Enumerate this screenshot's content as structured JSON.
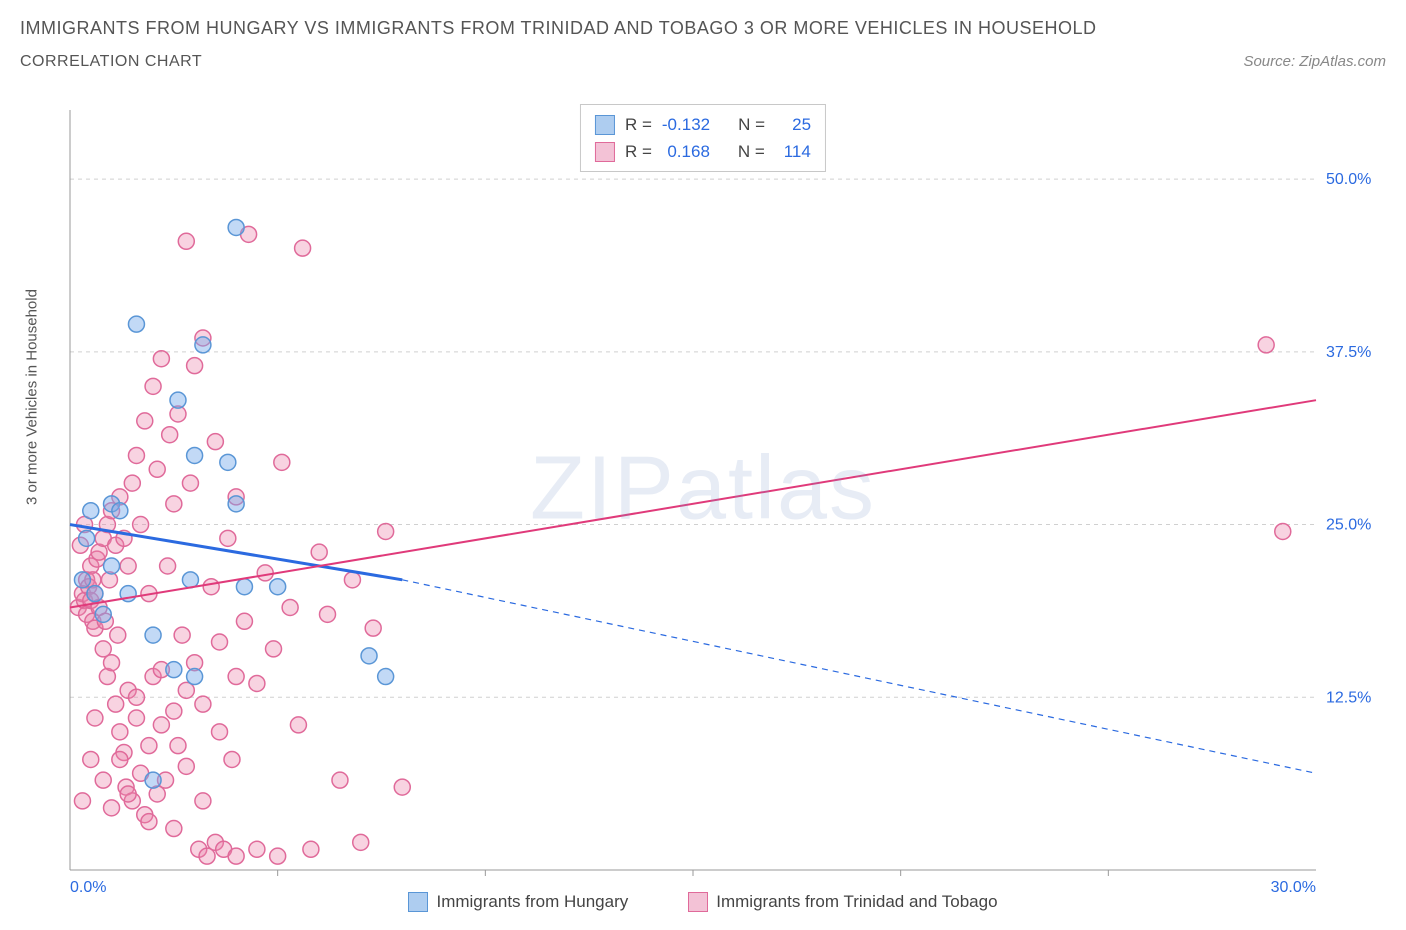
{
  "title": "IMMIGRANTS FROM HUNGARY VS IMMIGRANTS FROM TRINIDAD AND TOBAGO 3 OR MORE VEHICLES IN HOUSEHOLD",
  "subtitle": "CORRELATION CHART",
  "source": "Source: ZipAtlas.com",
  "watermark_bold": "ZIP",
  "watermark_light": "atlas",
  "chart": {
    "type": "scatter",
    "background_color": "#ffffff",
    "grid_color": "#d0d0d0",
    "axis_color": "#999999",
    "tick_label_color": "#2b6ae0",
    "xlim": [
      0,
      30
    ],
    "ylim": [
      0,
      55
    ],
    "x_axis": {
      "ticks": [
        0,
        30
      ],
      "tick_labels": [
        "0.0%",
        "30.0%"
      ],
      "minor_ticks": [
        5,
        10,
        15,
        20,
        25
      ]
    },
    "y_axis": {
      "label": "3 or more Vehicles in Household",
      "ticks": [
        12.5,
        25.0,
        37.5,
        50.0
      ],
      "tick_labels": [
        "12.5%",
        "25.0%",
        "37.5%",
        "50.0%"
      ]
    },
    "series": [
      {
        "id": "hungary",
        "label": "Immigrants from Hungary",
        "color_fill": "rgba(120,170,235,0.45)",
        "color_stroke": "#5a96d6",
        "legend_fill": "#aecdf0",
        "legend_stroke": "#5a96d6",
        "R": "-0.132",
        "N": "25",
        "regression": {
          "solid": {
            "x1": 0,
            "y1": 25.0,
            "x2": 8,
            "y2": 21.0
          },
          "dashed": {
            "x1": 8,
            "y1": 21.0,
            "x2": 30,
            "y2": 7.0
          },
          "line_color": "#2b6ae0",
          "line_width": 2
        },
        "points": [
          [
            1.6,
            39.5
          ],
          [
            3.2,
            38.0
          ],
          [
            2.6,
            34.0
          ],
          [
            4.0,
            46.5
          ],
          [
            3.0,
            30.0
          ],
          [
            1.0,
            26.5
          ],
          [
            1.2,
            26.0
          ],
          [
            4.0,
            26.5
          ],
          [
            2.9,
            21.0
          ],
          [
            4.2,
            20.5
          ],
          [
            2.5,
            14.5
          ],
          [
            3.0,
            14.0
          ],
          [
            7.2,
            15.5
          ],
          [
            7.6,
            14.0
          ],
          [
            2.0,
            6.5
          ],
          [
            0.4,
            24.0
          ],
          [
            1.0,
            22.0
          ],
          [
            0.6,
            20.0
          ],
          [
            0.8,
            18.5
          ],
          [
            3.8,
            29.5
          ],
          [
            0.5,
            26.0
          ],
          [
            1.4,
            20.0
          ],
          [
            5.0,
            20.5
          ],
          [
            2.0,
            17.0
          ],
          [
            0.3,
            21.0
          ]
        ]
      },
      {
        "id": "trinidad",
        "label": "Immigrants from Trinidad and Tobago",
        "color_fill": "rgba(235,130,170,0.35)",
        "color_stroke": "#e06a9a",
        "legend_fill": "#f3c2d6",
        "legend_stroke": "#e06a9a",
        "R": "0.168",
        "N": "114",
        "regression": {
          "solid": {
            "x1": 0,
            "y1": 19.0,
            "x2": 30,
            "y2": 34.0
          },
          "line_color": "#e03a7a",
          "line_width": 2
        },
        "points": [
          [
            0.2,
            19.0
          ],
          [
            0.3,
            20.0
          ],
          [
            0.35,
            19.5
          ],
          [
            0.4,
            18.5
          ],
          [
            0.4,
            21.0
          ],
          [
            0.45,
            20.5
          ],
          [
            0.5,
            19.5
          ],
          [
            0.5,
            22.0
          ],
          [
            0.55,
            18.0
          ],
          [
            0.55,
            21.0
          ],
          [
            0.6,
            20.0
          ],
          [
            0.6,
            17.5
          ],
          [
            0.65,
            22.5
          ],
          [
            0.7,
            19.0
          ],
          [
            0.7,
            23.0
          ],
          [
            0.8,
            24.0
          ],
          [
            0.8,
            16.0
          ],
          [
            0.85,
            18.0
          ],
          [
            0.9,
            25.0
          ],
          [
            0.9,
            14.0
          ],
          [
            0.95,
            21.0
          ],
          [
            1.0,
            15.0
          ],
          [
            1.0,
            26.0
          ],
          [
            1.1,
            12.0
          ],
          [
            1.1,
            23.5
          ],
          [
            1.15,
            17.0
          ],
          [
            1.2,
            27.0
          ],
          [
            1.2,
            10.0
          ],
          [
            1.3,
            8.5
          ],
          [
            1.3,
            24.0
          ],
          [
            1.35,
            6.0
          ],
          [
            1.4,
            22.0
          ],
          [
            1.4,
            13.0
          ],
          [
            1.5,
            28.0
          ],
          [
            1.5,
            5.0
          ],
          [
            1.6,
            30.0
          ],
          [
            1.6,
            11.0
          ],
          [
            1.7,
            7.0
          ],
          [
            1.7,
            25.0
          ],
          [
            1.8,
            4.0
          ],
          [
            1.8,
            32.5
          ],
          [
            1.9,
            9.0
          ],
          [
            1.9,
            20.0
          ],
          [
            2.0,
            35.0
          ],
          [
            2.0,
            14.0
          ],
          [
            2.1,
            5.5
          ],
          [
            2.1,
            29.0
          ],
          [
            2.2,
            37.0
          ],
          [
            2.2,
            10.5
          ],
          [
            2.3,
            6.5
          ],
          [
            2.35,
            22.0
          ],
          [
            2.4,
            31.5
          ],
          [
            2.5,
            3.0
          ],
          [
            2.5,
            26.5
          ],
          [
            2.6,
            9.0
          ],
          [
            2.6,
            33.0
          ],
          [
            2.7,
            17.0
          ],
          [
            2.8,
            45.5
          ],
          [
            2.8,
            7.5
          ],
          [
            2.9,
            28.0
          ],
          [
            3.0,
            15.0
          ],
          [
            3.0,
            36.5
          ],
          [
            3.1,
            1.5
          ],
          [
            3.2,
            38.5
          ],
          [
            3.2,
            12.0
          ],
          [
            3.3,
            1.0
          ],
          [
            3.4,
            20.5
          ],
          [
            3.5,
            2.0
          ],
          [
            3.5,
            31.0
          ],
          [
            3.6,
            10.0
          ],
          [
            3.7,
            1.5
          ],
          [
            3.8,
            24.0
          ],
          [
            3.9,
            8.0
          ],
          [
            4.0,
            1.0
          ],
          [
            4.0,
            27.0
          ],
          [
            4.2,
            18.0
          ],
          [
            4.3,
            46.0
          ],
          [
            4.5,
            13.5
          ],
          [
            4.5,
            1.5
          ],
          [
            4.7,
            21.5
          ],
          [
            4.9,
            16.0
          ],
          [
            5.0,
            1.0
          ],
          [
            5.1,
            29.5
          ],
          [
            5.3,
            19.0
          ],
          [
            5.5,
            10.5
          ],
          [
            5.6,
            45.0
          ],
          [
            5.8,
            1.5
          ],
          [
            6.0,
            23.0
          ],
          [
            6.2,
            18.5
          ],
          [
            6.5,
            6.5
          ],
          [
            6.8,
            21.0
          ],
          [
            7.0,
            2.0
          ],
          [
            7.3,
            17.5
          ],
          [
            7.6,
            24.5
          ],
          [
            8.0,
            6.0
          ],
          [
            0.3,
            5.0
          ],
          [
            0.5,
            8.0
          ],
          [
            0.6,
            11.0
          ],
          [
            0.8,
            6.5
          ],
          [
            1.0,
            4.5
          ],
          [
            1.2,
            8.0
          ],
          [
            1.4,
            5.5
          ],
          [
            1.6,
            12.5
          ],
          [
            1.9,
            3.5
          ],
          [
            2.2,
            14.5
          ],
          [
            2.5,
            11.5
          ],
          [
            2.8,
            13.0
          ],
          [
            3.2,
            5.0
          ],
          [
            3.6,
            16.5
          ],
          [
            4.0,
            14.0
          ],
          [
            28.8,
            38.0
          ],
          [
            29.2,
            24.5
          ],
          [
            0.25,
            23.5
          ],
          [
            0.35,
            25.0
          ]
        ]
      }
    ],
    "marker_radius": 8,
    "marker_stroke_width": 1.5
  },
  "legend": {
    "r_label": "R =",
    "n_label": "N ="
  }
}
